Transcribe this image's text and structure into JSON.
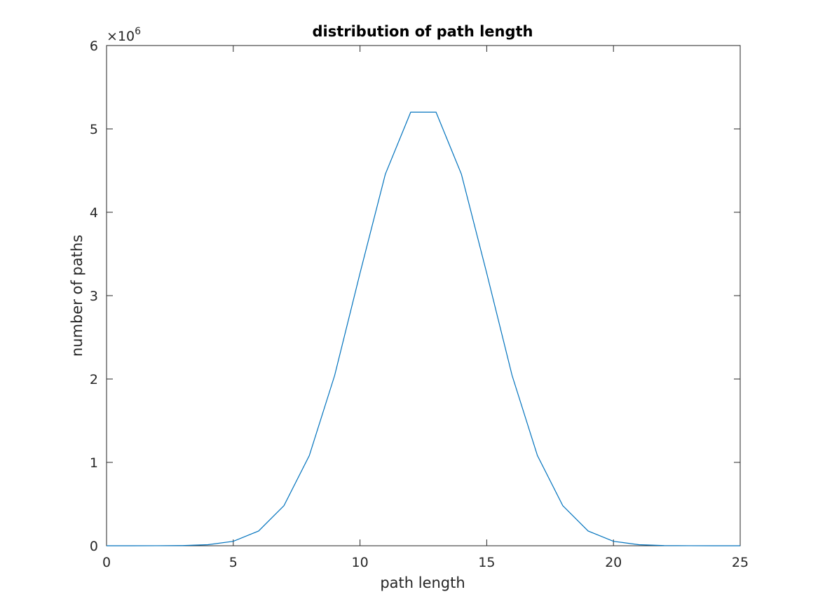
{
  "chart_data": {
    "type": "line",
    "title": "distribution of path length",
    "xlabel": "path length",
    "ylabel": "number of paths",
    "y_multiplier_base": "×10",
    "y_multiplier_exp": "6",
    "xlim": [
      0,
      25
    ],
    "ylim": [
      0,
      6
    ],
    "y_scale": 1000000,
    "xticks": [
      0,
      5,
      10,
      15,
      20,
      25
    ],
    "yticks": [
      0,
      1,
      2,
      3,
      4,
      5,
      6
    ],
    "grid": false,
    "line_color": "#0072BD",
    "series": [
      {
        "x": [
          0,
          1,
          2,
          3,
          4,
          5,
          6,
          7,
          8,
          9,
          10,
          11,
          12,
          13,
          14,
          15,
          16,
          17,
          18,
          19,
          20,
          21,
          22,
          23,
          24,
          25
        ],
        "values": [
          1,
          25,
          300,
          2300,
          12650,
          53130,
          177100,
          480700,
          1081575,
          2042975,
          3268760,
          4457400,
          5200300,
          5200300,
          4457400,
          3268760,
          2042975,
          1081575,
          480700,
          177100,
          53130,
          12650,
          2300,
          300,
          25,
          1
        ]
      }
    ]
  }
}
